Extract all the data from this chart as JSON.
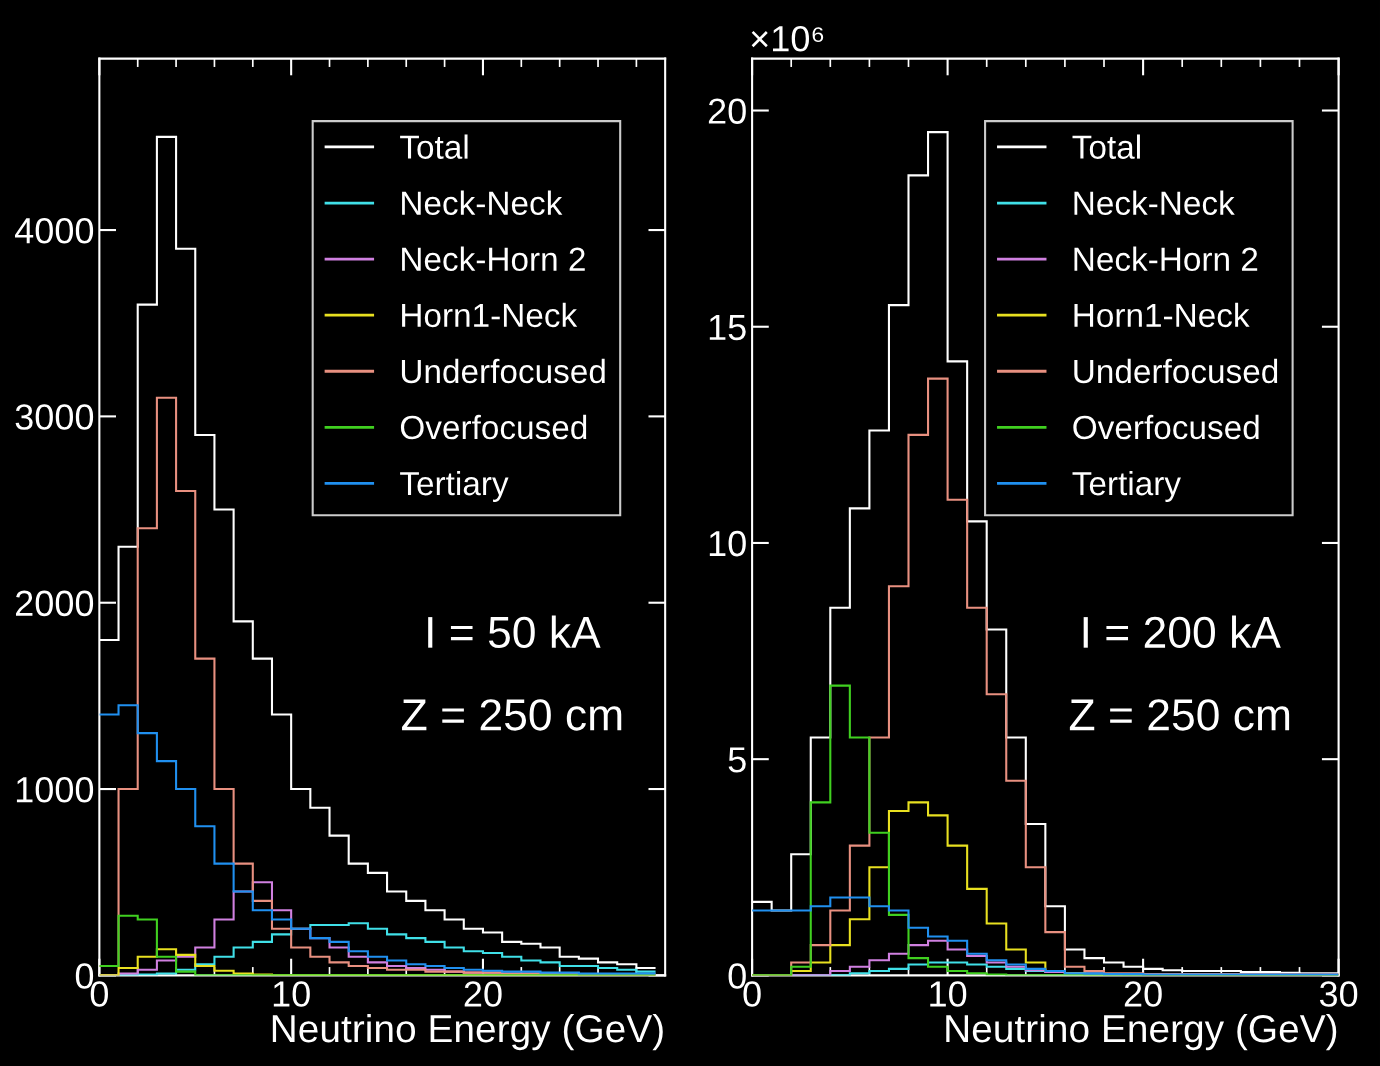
{
  "chart_data": [
    {
      "type": "histogram",
      "xlabel": "Neutrino Energy (GeV)",
      "bins": [
        0,
        1,
        2,
        3,
        4,
        5,
        6,
        7,
        8,
        9,
        10,
        11,
        12,
        13,
        14,
        15,
        16,
        17,
        18,
        19,
        20,
        21,
        22,
        23,
        24,
        25,
        26,
        27,
        28,
        29
      ],
      "series": [
        {
          "name": "Total",
          "color": "#ffffff",
          "values": [
            1800,
            2300,
            3600,
            4500,
            3900,
            2900,
            2500,
            1900,
            1700,
            1400,
            1000,
            900,
            750,
            600,
            550,
            450,
            400,
            350,
            300,
            250,
            230,
            180,
            170,
            150,
            100,
            90,
            70,
            60,
            40
          ]
        },
        {
          "name": "Neck-Neck",
          "color": "#40e0e8",
          "values": [
            0,
            0,
            5,
            10,
            30,
            60,
            100,
            150,
            180,
            220,
            250,
            270,
            270,
            280,
            250,
            220,
            200,
            180,
            150,
            130,
            120,
            100,
            80,
            70,
            50,
            50,
            40,
            30,
            20
          ]
        },
        {
          "name": "Neck-Horn 2",
          "color": "#d080e0",
          "values": [
            0,
            10,
            30,
            80,
            100,
            150,
            300,
            450,
            500,
            350,
            250,
            200,
            150,
            100,
            70,
            50,
            40,
            30,
            20,
            15,
            15,
            10,
            10,
            10,
            10,
            5,
            5,
            5,
            5
          ]
        },
        {
          "name": "Horn1-Neck",
          "color": "#e8e020",
          "values": [
            0,
            40,
            100,
            140,
            110,
            50,
            25,
            10,
            5,
            0,
            0,
            0,
            0,
            0,
            0,
            0,
            0,
            0,
            0,
            0,
            0,
            0,
            0,
            0,
            0,
            0,
            0,
            0,
            0
          ]
        },
        {
          "name": "Underfocused",
          "color": "#e89080",
          "values": [
            50,
            1000,
            2400,
            3100,
            2600,
            1700,
            1000,
            600,
            400,
            250,
            150,
            100,
            70,
            50,
            40,
            30,
            30,
            20,
            20,
            15,
            15,
            10,
            10,
            10,
            10,
            5,
            5,
            5,
            5
          ]
        },
        {
          "name": "Overfocused",
          "color": "#40d020",
          "values": [
            50,
            320,
            300,
            100,
            20,
            0,
            0,
            0,
            0,
            0,
            0,
            0,
            0,
            0,
            0,
            0,
            0,
            0,
            0,
            0,
            0,
            0,
            0,
            0,
            0,
            0,
            0,
            0,
            0
          ]
        },
        {
          "name": "Tertiary",
          "color": "#2090f0",
          "values": [
            1400,
            1450,
            1300,
            1150,
            1000,
            800,
            600,
            450,
            350,
            300,
            250,
            200,
            180,
            130,
            100,
            80,
            60,
            50,
            40,
            30,
            25,
            20,
            20,
            15,
            15,
            10,
            10,
            10,
            10
          ]
        }
      ],
      "xlim": [
        0,
        29.5
      ],
      "xticks": [
        0,
        10,
        20
      ],
      "ylim": [
        0,
        4920
      ],
      "yticks": [
        0,
        1000,
        2000,
        3000,
        4000
      ],
      "grid": false,
      "legend": "top right",
      "annotations": [
        "I = 50 kA",
        "Z = 250 cm"
      ]
    },
    {
      "type": "histogram",
      "xlabel": "Neutrino Energy (GeV)",
      "ylabel": "×10⁶",
      "bins": [
        0,
        1,
        2,
        3,
        4,
        5,
        6,
        7,
        8,
        9,
        10,
        11,
        12,
        13,
        14,
        15,
        16,
        17,
        18,
        19,
        20,
        21,
        22,
        23,
        24,
        25,
        26,
        27,
        28,
        29,
        30
      ],
      "series": [
        {
          "name": "Total",
          "color": "#ffffff",
          "values": [
            1.7,
            1.5,
            2.8,
            5.5,
            8.5,
            10.8,
            12.6,
            15.5,
            18.5,
            19.5,
            14.2,
            10.5,
            8.0,
            5.5,
            3.5,
            1.6,
            0.6,
            0.4,
            0.3,
            0.2,
            0.15,
            0.12,
            0.1,
            0.1,
            0.1,
            0.08,
            0.08,
            0.06,
            0.05,
            0.05
          ]
        },
        {
          "name": "Neck-Neck",
          "color": "#40e0e8",
          "values": [
            0,
            0,
            0,
            0,
            0,
            0.05,
            0.1,
            0.15,
            0.25,
            0.3,
            0.3,
            0.25,
            0.2,
            0.15,
            0.1,
            0.08,
            0.05,
            0.04,
            0.03,
            0.02,
            0.01,
            0.01,
            0.01,
            0.01,
            0.01,
            0.01,
            0.01,
            0.01,
            0.01,
            0.01
          ]
        },
        {
          "name": "Neck-Horn 2",
          "color": "#d080e0",
          "values": [
            0,
            0,
            0,
            0,
            0.1,
            0.2,
            0.35,
            0.5,
            0.7,
            0.8,
            0.6,
            0.45,
            0.3,
            0.2,
            0.12,
            0.08,
            0.05,
            0.04,
            0.03,
            0.02,
            0.01,
            0.01,
            0.01,
            0.01,
            0.01,
            0.01,
            0.01,
            0.01,
            0.01,
            0.01
          ]
        },
        {
          "name": "Horn1-Neck",
          "color": "#e8e020",
          "values": [
            0,
            0,
            0.1,
            0.3,
            0.7,
            1.3,
            2.5,
            3.8,
            4.0,
            3.7,
            3.0,
            2.0,
            1.2,
            0.6,
            0.3,
            0.1,
            0.05,
            0.02,
            0.02,
            0.02,
            0.02,
            0.02,
            0.02,
            0.02,
            0.02,
            0.02,
            0.02,
            0.02,
            0.02,
            0.02
          ]
        },
        {
          "name": "Underfocused",
          "color": "#e89080",
          "values": [
            0,
            0,
            0.3,
            0.7,
            1.5,
            3.0,
            5.5,
            9.0,
            12.5,
            13.8,
            11.0,
            8.5,
            6.5,
            4.5,
            2.5,
            1.0,
            0.2,
            0.1,
            0.05,
            0.05,
            0.03,
            0.03,
            0.03,
            0.03,
            0.03,
            0.03,
            0.03,
            0.03,
            0.03,
            0.03
          ]
        },
        {
          "name": "Overfocused",
          "color": "#40d020",
          "values": [
            0,
            0,
            0.2,
            4.0,
            6.7,
            5.5,
            3.3,
            1.4,
            0.4,
            0.2,
            0.1,
            0.05,
            0.02,
            0,
            0,
            0,
            0,
            0,
            0,
            0,
            0,
            0,
            0,
            0,
            0,
            0,
            0,
            0,
            0,
            0
          ]
        },
        {
          "name": "Tertiary",
          "color": "#2090f0",
          "values": [
            1.5,
            1.5,
            1.5,
            1.6,
            1.8,
            1.8,
            1.6,
            1.5,
            1.1,
            0.9,
            0.8,
            0.5,
            0.35,
            0.25,
            0.15,
            0.1,
            0.05,
            0.04,
            0.03,
            0.03,
            0.02,
            0.02,
            0.02,
            0.02,
            0.02,
            0.02,
            0.02,
            0.02,
            0.02,
            0.02
          ]
        }
      ],
      "xlim": [
        0,
        30
      ],
      "xticks": [
        0,
        10,
        20,
        30
      ],
      "ylim": [
        0,
        21.2
      ],
      "yticks": [
        0,
        5,
        10,
        15,
        20
      ],
      "grid": false,
      "legend": "top right",
      "annotations": [
        "I = 200 kA",
        "Z = 250 cm"
      ]
    }
  ]
}
